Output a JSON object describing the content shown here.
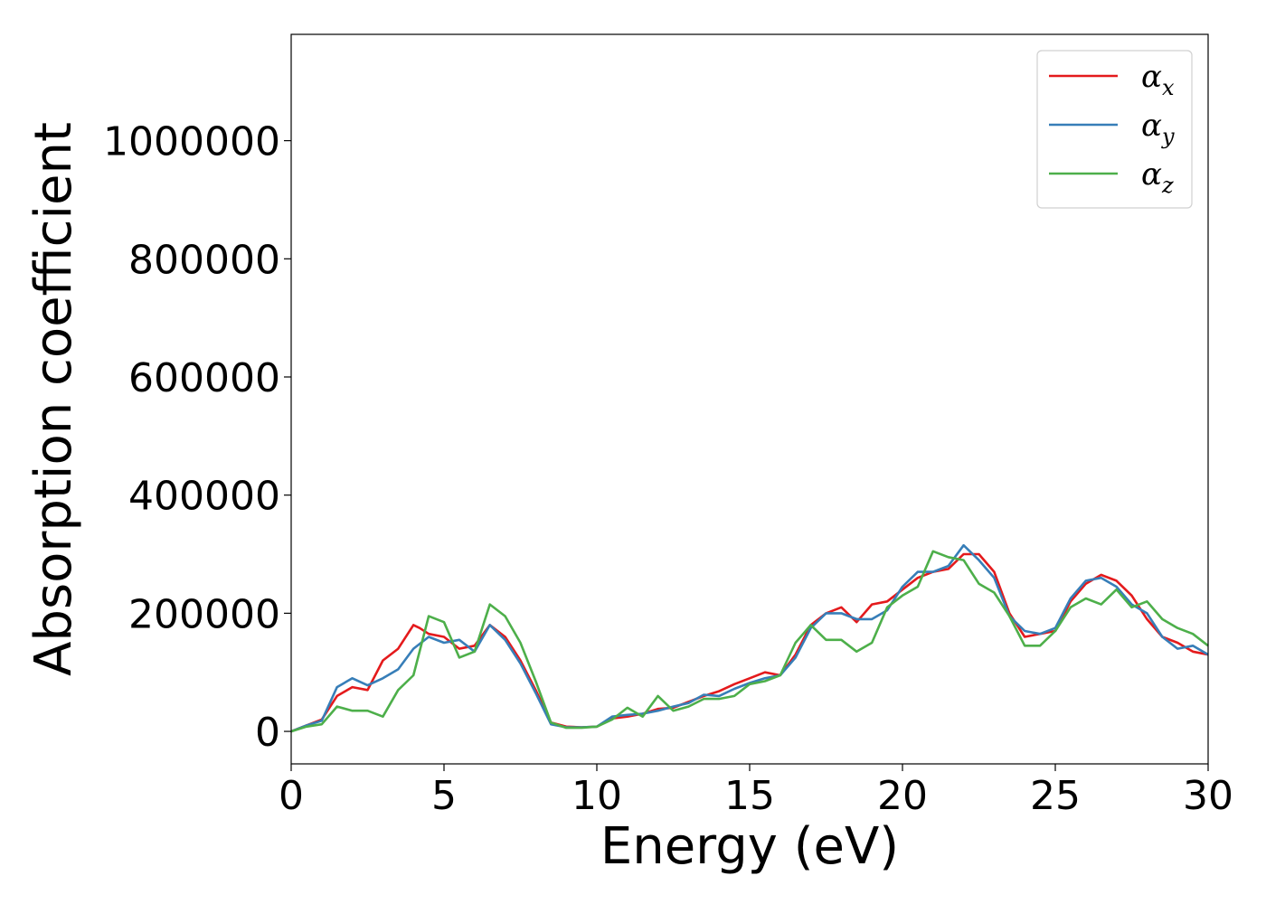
{
  "chart_data": {
    "type": "line",
    "xlabel": "Energy (eV)",
    "ylabel": "Absorption coefficient",
    "xlim": [
      0,
      30
    ],
    "ylim": [
      -55000,
      1180000
    ],
    "xticks": [
      0,
      5,
      10,
      15,
      20,
      25,
      30
    ],
    "yticks": [
      0,
      200000,
      400000,
      600000,
      800000,
      1000000
    ],
    "grid": false,
    "legend_position": "top-right",
    "series": [
      {
        "name": "αx",
        "base": "α",
        "sub": "x",
        "color": "#e41a1c",
        "x": [
          0,
          0.5,
          1,
          1.5,
          2,
          2.5,
          3,
          3.5,
          4,
          4.2,
          4.5,
          5,
          5.5,
          6,
          6.5,
          7,
          7.5,
          8,
          8.5,
          9,
          9.5,
          10,
          10.5,
          11,
          11.5,
          12,
          12.5,
          13,
          13.5,
          14,
          14.5,
          15,
          15.5,
          16,
          16.5,
          17,
          17.5,
          18,
          18.5,
          19,
          19.5,
          20,
          20.5,
          21,
          21.5,
          22,
          22.5,
          23,
          23.5,
          24,
          24.5,
          25,
          25.5,
          26,
          26.5,
          27,
          27.5,
          28,
          28.5,
          29,
          29.5,
          30
        ],
        "y": [
          0,
          10000,
          20000,
          60000,
          75000,
          70000,
          120000,
          140000,
          180000,
          175000,
          165000,
          160000,
          140000,
          145000,
          180000,
          160000,
          120000,
          70000,
          15000,
          8000,
          7000,
          8000,
          22000,
          25000,
          30000,
          38000,
          40000,
          50000,
          60000,
          68000,
          80000,
          90000,
          100000,
          95000,
          130000,
          180000,
          200000,
          210000,
          185000,
          215000,
          220000,
          240000,
          260000,
          270000,
          275000,
          300000,
          300000,
          270000,
          200000,
          160000,
          165000,
          170000,
          220000,
          250000,
          265000,
          255000,
          230000,
          190000,
          160000,
          150000,
          135000,
          130000
        ]
      },
      {
        "name": "αy",
        "base": "α",
        "sub": "y",
        "color": "#377eb8",
        "x": [
          0,
          0.5,
          1,
          1.5,
          2,
          2.5,
          3,
          3.5,
          4,
          4.5,
          5,
          5.5,
          6,
          6.5,
          7,
          7.5,
          8,
          8.5,
          9,
          9.5,
          10,
          10.5,
          11,
          11.5,
          12,
          12.5,
          13,
          13.5,
          14,
          14.5,
          15,
          15.5,
          16,
          16.5,
          17,
          17.5,
          18,
          18.5,
          19,
          19.5,
          20,
          20.5,
          21,
          21.5,
          22,
          22.5,
          23,
          23.5,
          24,
          24.5,
          25,
          25.5,
          26,
          26.5,
          27,
          27.5,
          28,
          28.5,
          29,
          29.5,
          30
        ],
        "y": [
          0,
          10000,
          18000,
          75000,
          90000,
          78000,
          90000,
          105000,
          140000,
          160000,
          150000,
          155000,
          135000,
          180000,
          155000,
          115000,
          65000,
          12000,
          7000,
          7000,
          8000,
          25000,
          28000,
          30000,
          35000,
          42000,
          48000,
          62000,
          60000,
          72000,
          82000,
          90000,
          95000,
          125000,
          175000,
          200000,
          200000,
          190000,
          190000,
          205000,
          245000,
          270000,
          270000,
          280000,
          315000,
          290000,
          260000,
          195000,
          170000,
          165000,
          175000,
          225000,
          255000,
          260000,
          245000,
          215000,
          200000,
          160000,
          140000,
          145000,
          130000
        ]
      },
      {
        "name": "αz",
        "base": "α",
        "sub": "z",
        "color": "#4daf4a",
        "x": [
          0,
          0.5,
          1,
          1.5,
          2,
          2.5,
          3,
          3.5,
          4,
          4.5,
          5,
          5.5,
          6,
          6.5,
          7,
          7.5,
          8,
          8.5,
          9,
          9.5,
          10,
          10.5,
          11,
          11.5,
          12,
          12.5,
          13,
          13.5,
          14,
          14.5,
          15,
          15.5,
          16,
          16.5,
          17,
          17.5,
          18,
          18.5,
          19,
          19.5,
          20,
          20.5,
          21,
          21.5,
          22,
          22.5,
          23,
          23.5,
          24,
          24.5,
          25,
          25.5,
          26,
          26.5,
          27,
          27.5,
          28,
          28.5,
          29,
          29.5,
          30
        ],
        "y": [
          0,
          8000,
          12000,
          42000,
          35000,
          35000,
          25000,
          70000,
          95000,
          195000,
          185000,
          125000,
          135000,
          215000,
          195000,
          150000,
          85000,
          15000,
          6000,
          6000,
          8000,
          20000,
          40000,
          25000,
          60000,
          35000,
          42000,
          55000,
          55000,
          60000,
          80000,
          85000,
          95000,
          150000,
          180000,
          155000,
          155000,
          135000,
          150000,
          210000,
          230000,
          245000,
          305000,
          295000,
          290000,
          250000,
          235000,
          195000,
          145000,
          145000,
          170000,
          210000,
          225000,
          215000,
          240000,
          210000,
          220000,
          190000,
          175000,
          165000,
          145000
        ]
      }
    ]
  }
}
